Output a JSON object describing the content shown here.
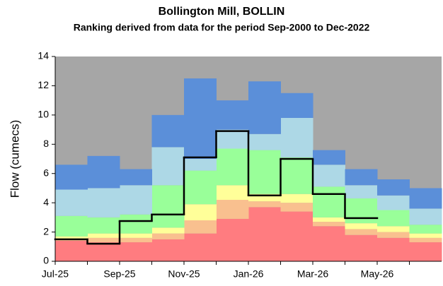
{
  "chart_data": {
    "type": "stepped-area",
    "title": "Bollington Mill, BOLLIN",
    "subtitle": "Ranking derived from data for the period Sep-2000 to Dec-2022",
    "y_label": "Flow (cumecs)",
    "categories": [
      "Jul-25",
      null,
      "Sep-25",
      null,
      "Nov-25",
      null,
      "Jan-26",
      null,
      "Mar-26",
      null,
      "May-26",
      null
    ],
    "background_color": "#a6a6a6",
    "series": [
      {
        "color": "#ff7c80",
        "values": [
          1.4,
          1.3,
          1.3,
          1.5,
          1.9,
          2.9,
          3.7,
          3.4,
          2.4,
          1.8,
          1.6,
          1.3
        ]
      },
      {
        "color": "#f9c08f",
        "values": [
          0.1,
          0.3,
          0.3,
          0.4,
          0.9,
          1.3,
          0.4,
          0.6,
          0.3,
          0.4,
          0.4,
          0.3
        ]
      },
      {
        "color": "#ffff99",
        "values": [
          0.2,
          0.3,
          0.3,
          0.4,
          1.1,
          1.0,
          0.5,
          0.6,
          0.3,
          0.4,
          0.4,
          0.3
        ]
      },
      {
        "color": "#99ff99",
        "values": [
          1.4,
          1.1,
          1.3,
          2.9,
          2.3,
          2.5,
          3.0,
          2.5,
          2.1,
          1.7,
          1.1,
          0.6
        ]
      },
      {
        "color": "#add8e6",
        "values": [
          1.8,
          2.0,
          2.0,
          2.6,
          0.8,
          1.3,
          1.1,
          2.7,
          1.5,
          0.9,
          1.0,
          1.1
        ]
      },
      {
        "color": "#5b8fd9",
        "values": [
          1.7,
          2.2,
          1.1,
          2.2,
          5.5,
          2.0,
          3.6,
          1.7,
          1.0,
          1.1,
          1.1,
          1.4
        ]
      }
    ],
    "line": {
      "color": "#000000",
      "values": [
        1.5,
        1.2,
        2.75,
        3.2,
        7.1,
        8.9,
        4.5,
        7.0,
        4.6,
        2.95,
        null,
        null
      ]
    },
    "ylim": [
      0,
      14
    ],
    "yticks": [
      0,
      2,
      4,
      6,
      8,
      10,
      12,
      14
    ],
    "grid": false
  }
}
